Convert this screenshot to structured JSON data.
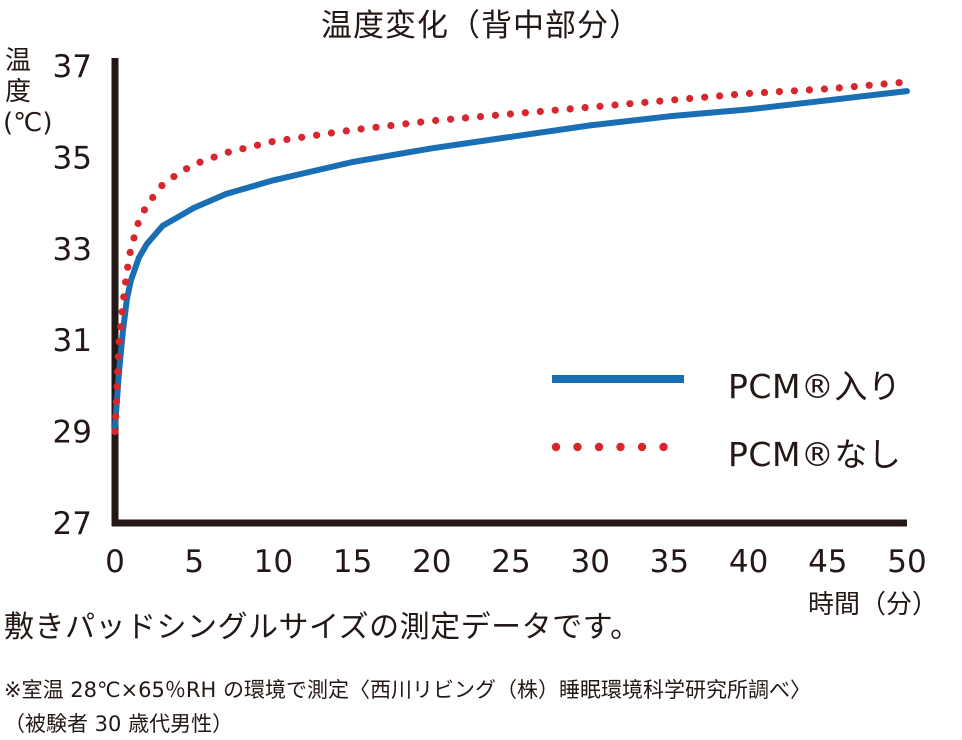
{
  "chart_data": {
    "type": "line",
    "title": "温度変化（背中部分）",
    "ylabel": "温度(℃)",
    "xlabel": "時間（分）",
    "xlim": [
      0,
      50
    ],
    "ylim": [
      27,
      37
    ],
    "xticks": [
      0,
      5,
      10,
      15,
      20,
      25,
      30,
      35,
      40,
      45,
      50
    ],
    "yticks": [
      27,
      29,
      31,
      33,
      35,
      37
    ],
    "grid": false,
    "legend_position": "right-middle",
    "series": [
      {
        "name": "PCM®入り",
        "style": "solid",
        "color": "#1a6fb4",
        "x": [
          0,
          0.25,
          0.5,
          0.75,
          1,
          1.5,
          2,
          3,
          4,
          5,
          7,
          10,
          15,
          20,
          25,
          30,
          35,
          40,
          45,
          50
        ],
        "y": [
          29.1,
          30.3,
          31.2,
          31.9,
          32.3,
          32.8,
          33.1,
          33.5,
          33.7,
          33.9,
          34.2,
          34.5,
          34.9,
          35.2,
          35.45,
          35.7,
          35.9,
          36.05,
          36.25,
          36.45
        ]
      },
      {
        "name": "PCM®なし",
        "style": "dotted",
        "color": "#d7262e",
        "x": [
          0,
          0.25,
          0.5,
          0.75,
          1,
          1.5,
          2,
          3,
          4,
          5,
          7,
          10,
          15,
          20,
          25,
          30,
          35,
          40,
          45,
          50
        ],
        "y": [
          29.0,
          30.9,
          31.8,
          32.5,
          33.0,
          33.6,
          33.95,
          34.4,
          34.65,
          34.85,
          35.1,
          35.35,
          35.6,
          35.8,
          35.95,
          36.1,
          36.25,
          36.4,
          36.5,
          36.65
        ]
      }
    ]
  },
  "legend": {
    "solid_label": "PCM®入り",
    "dotted_label": "PCM®なし"
  },
  "notes": {
    "line1": "敷きパッドシングルサイズの測定データです。",
    "line2": "※室温 28℃×65％RH の環境で測定〈西川リビング（株）睡眠環境科学研究所調べ〉",
    "line3": "（被験者 30 歳代男性）"
  },
  "colors": {
    "axis": "#231815",
    "solid_series": "#1a6fb4",
    "dotted_series": "#d7262e"
  }
}
